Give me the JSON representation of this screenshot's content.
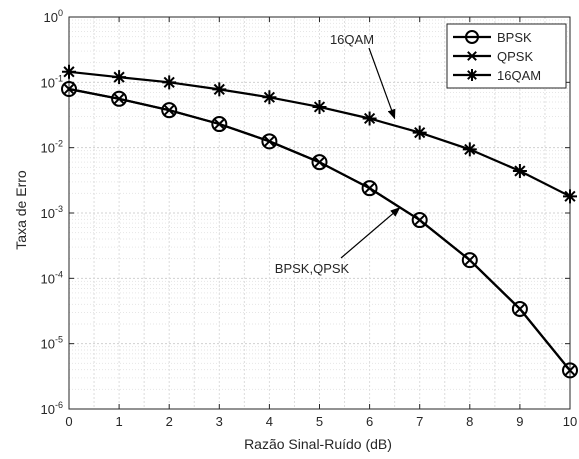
{
  "chart_data": {
    "type": "line",
    "title": "",
    "xlabel": "Razão Sinal-Ruído (dB)",
    "ylabel": "Taxa de Erro",
    "xlim": [
      0,
      10
    ],
    "ylim": [
      1e-06,
      1
    ],
    "yscale": "log",
    "grid": "on (major and minor)",
    "x_ticks": [
      "0",
      "1",
      "2",
      "3",
      "4",
      "5",
      "6",
      "7",
      "8",
      "9",
      "10"
    ],
    "y_ticks": [
      {
        "base": "10",
        "exp": "0"
      },
      {
        "base": "10",
        "exp": "-1"
      },
      {
        "base": "10",
        "exp": "-2"
      },
      {
        "base": "10",
        "exp": "-3"
      },
      {
        "base": "10",
        "exp": "-4"
      },
      {
        "base": "10",
        "exp": "-5"
      },
      {
        "base": "10",
        "exp": "-6"
      }
    ],
    "x": [
      0,
      1,
      2,
      3,
      4,
      5,
      6,
      7,
      8,
      9,
      10
    ],
    "series": [
      {
        "name": "BPSK",
        "marker": "circle",
        "values": [
          0.079,
          0.056,
          0.0375,
          0.023,
          0.0125,
          0.006,
          0.0024,
          0.00078,
          0.00019,
          3.4e-05,
          3.9e-06
        ]
      },
      {
        "name": "QPSK",
        "marker": "x",
        "values": [
          0.079,
          0.056,
          0.0375,
          0.023,
          0.0125,
          0.006,
          0.0024,
          0.00078,
          0.00019,
          3.4e-05,
          3.9e-06
        ]
      },
      {
        "name": "16QAM",
        "marker": "asterisk",
        "values": [
          0.145,
          0.12,
          0.1,
          0.078,
          0.059,
          0.042,
          0.028,
          0.017,
          0.0094,
          0.0044,
          0.0018
        ]
      }
    ],
    "legend_position": "top-right",
    "annotations": [
      {
        "text": "16QAM",
        "points_to_x": 6.5,
        "points_to_y": 0.028
      },
      {
        "text": "BPSK,QPSK",
        "points_to_x": 6.6,
        "points_to_y": 0.0012
      }
    ],
    "line_color": "#000000"
  }
}
